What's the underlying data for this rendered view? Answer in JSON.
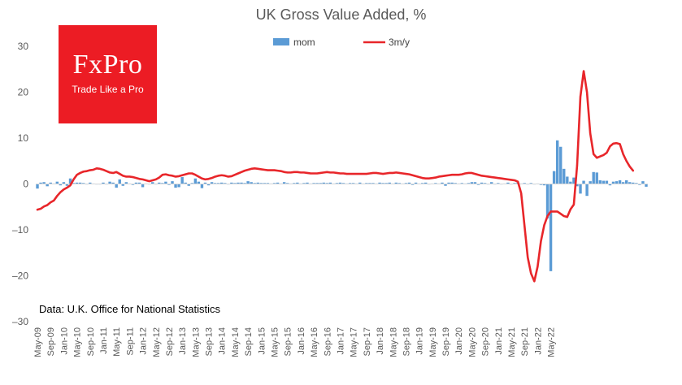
{
  "logo": {
    "brand": "FxPro",
    "tagline": "Trade Like a Pro"
  },
  "source_note": "Data: U.K. Office for National Statistics",
  "chart_data": {
    "type": "bar",
    "title": "UK Gross Value Added, %",
    "xlabel": "",
    "ylabel": "",
    "ylim": [
      -30,
      30
    ],
    "yticks": [
      -30,
      -20,
      -10,
      0,
      10,
      20,
      30
    ],
    "grid": false,
    "legend_position": "top",
    "x_start": "May-09",
    "x_end": "Jul-22",
    "x_tick_labels": [
      "May-09",
      "Sep-09",
      "Jan-10",
      "May-10",
      "Sep-10",
      "Jan-11",
      "May-11",
      "Sep-11",
      "Jan-12",
      "May-12",
      "Sep-12",
      "Jan-13",
      "May-13",
      "Sep-13",
      "Jan-14",
      "May-14",
      "Sep-14",
      "Jan-15",
      "May-15",
      "Sep-15",
      "Jan-16",
      "May-16",
      "Sep-16",
      "Jan-17",
      "May-17",
      "Sep-17",
      "Jan-18",
      "May-18",
      "Sep-18",
      "Jan-19",
      "May-19",
      "Sep-19",
      "Jan-20",
      "May-20",
      "Sep-20",
      "Jan-21",
      "May-21",
      "Sep-21",
      "Jan-22",
      "May-22"
    ],
    "series": [
      {
        "name": "mom",
        "type": "bar",
        "color": "#5b9bd5",
        "values": [
          -1.0,
          0.3,
          0.4,
          -0.5,
          0.3,
          0.1,
          0.5,
          -0.3,
          0.4,
          -0.4,
          1.2,
          0.2,
          0.3,
          0.3,
          0.2,
          0.0,
          0.3,
          0.1,
          0.0,
          -0.1,
          0.3,
          0.0,
          0.5,
          0.3,
          -0.8,
          1.0,
          -0.4,
          0.4,
          0.1,
          -0.2,
          0.3,
          0.3,
          -0.7,
          0.1,
          -0.1,
          0.4,
          -0.1,
          0.3,
          0.2,
          0.5,
          -0.2,
          0.6,
          -0.8,
          -0.7,
          1.5,
          0.3,
          -0.4,
          0.2,
          1.2,
          0.5,
          -0.9,
          0.3,
          -0.3,
          0.4,
          0.2,
          0.2,
          0.3,
          0.2,
          -0.1,
          0.3,
          0.2,
          0.3,
          0.3,
          0.2,
          0.6,
          0.4,
          0.2,
          0.3,
          0.2,
          0.2,
          0.2,
          0.1,
          0.2,
          0.3,
          0.1,
          0.4,
          0.2,
          0.1,
          0.2,
          0.3,
          0.1,
          0.2,
          0.3,
          0.1,
          0.2,
          0.2,
          0.2,
          0.3,
          0.2,
          0.3,
          0.1,
          0.2,
          0.3,
          0.2,
          0.1,
          0.2,
          0.2,
          0.1,
          0.3,
          0.1,
          0.2,
          0.2,
          0.2,
          0.1,
          0.3,
          0.2,
          0.2,
          0.3,
          0.1,
          0.3,
          0.2,
          0.1,
          0.2,
          0.3,
          -0.2,
          0.3,
          0.1,
          0.2,
          0.3,
          -0.1,
          0.1,
          0.2,
          0.1,
          0.3,
          -0.4,
          0.3,
          0.3,
          0.2,
          0.1,
          0.2,
          0.1,
          0.2,
          0.4,
          0.4,
          -0.2,
          0.3,
          0.2,
          0.0,
          0.4,
          -0.1,
          0.2,
          0.0,
          0.1,
          0.3,
          -0.1,
          0.2,
          0.3,
          0.1,
          0.2,
          0.0,
          0.2,
          0.0,
          0.1,
          -0.2,
          -0.3,
          -7.5,
          -19.0,
          2.8,
          9.5,
          8.1,
          3.3,
          1.6,
          0.5,
          1.4,
          -0.5,
          -2.1,
          0.7,
          -2.6,
          0.6,
          2.6,
          2.5,
          0.8,
          0.7,
          0.7,
          -0.3,
          0.5,
          0.6,
          0.8,
          0.4,
          0.8,
          0.4,
          0.3,
          0.2,
          -0.2,
          0.6,
          -0.6
        ]
      },
      {
        "name": "3m/y",
        "type": "line",
        "color": "#e8262a",
        "values": [
          -5.6,
          -5.4,
          -4.9,
          -4.6,
          -4.0,
          -3.6,
          -2.6,
          -1.8,
          -1.2,
          -0.8,
          -0.3,
          1.0,
          2.0,
          2.4,
          2.7,
          2.8,
          3.0,
          3.1,
          3.4,
          3.3,
          3.1,
          2.8,
          2.5,
          2.4,
          2.6,
          2.2,
          1.8,
          1.6,
          1.6,
          1.5,
          1.3,
          1.1,
          1.0,
          0.8,
          0.6,
          0.8,
          1.0,
          1.4,
          2.0,
          2.1,
          1.9,
          1.8,
          1.6,
          1.7,
          1.9,
          2.1,
          2.3,
          2.3,
          2.0,
          1.6,
          1.2,
          1.0,
          1.1,
          1.3,
          1.6,
          1.8,
          1.9,
          1.8,
          1.6,
          1.7,
          2.0,
          2.3,
          2.6,
          2.9,
          3.1,
          3.3,
          3.4,
          3.3,
          3.2,
          3.1,
          3.0,
          3.0,
          3.0,
          2.9,
          2.8,
          2.6,
          2.5,
          2.5,
          2.6,
          2.6,
          2.5,
          2.5,
          2.4,
          2.3,
          2.3,
          2.3,
          2.4,
          2.5,
          2.6,
          2.5,
          2.5,
          2.4,
          2.3,
          2.3,
          2.2,
          2.2,
          2.2,
          2.2,
          2.2,
          2.2,
          2.2,
          2.3,
          2.4,
          2.4,
          2.3,
          2.2,
          2.3,
          2.4,
          2.4,
          2.5,
          2.4,
          2.3,
          2.2,
          2.1,
          1.9,
          1.7,
          1.5,
          1.3,
          1.2,
          1.2,
          1.3,
          1.4,
          1.6,
          1.7,
          1.8,
          1.9,
          2.0,
          2.0,
          2.0,
          2.1,
          2.3,
          2.4,
          2.4,
          2.2,
          2.0,
          1.8,
          1.7,
          1.6,
          1.5,
          1.4,
          1.3,
          1.2,
          1.1,
          1.0,
          0.9,
          0.8,
          0.5,
          -2.0,
          -9.0,
          -16.0,
          -19.5,
          -21.2,
          -18.0,
          -12.5,
          -9.0,
          -7.0,
          -6.0,
          -6.0,
          -6.0,
          -6.5,
          -7.0,
          -7.2,
          -5.5,
          -4.5,
          4.0,
          19.0,
          24.6,
          20.0,
          11.0,
          6.5,
          5.7,
          6.0,
          6.3,
          6.8,
          8.2,
          8.8,
          8.9,
          8.7,
          6.5,
          5.0,
          3.8,
          2.9
        ]
      }
    ]
  }
}
